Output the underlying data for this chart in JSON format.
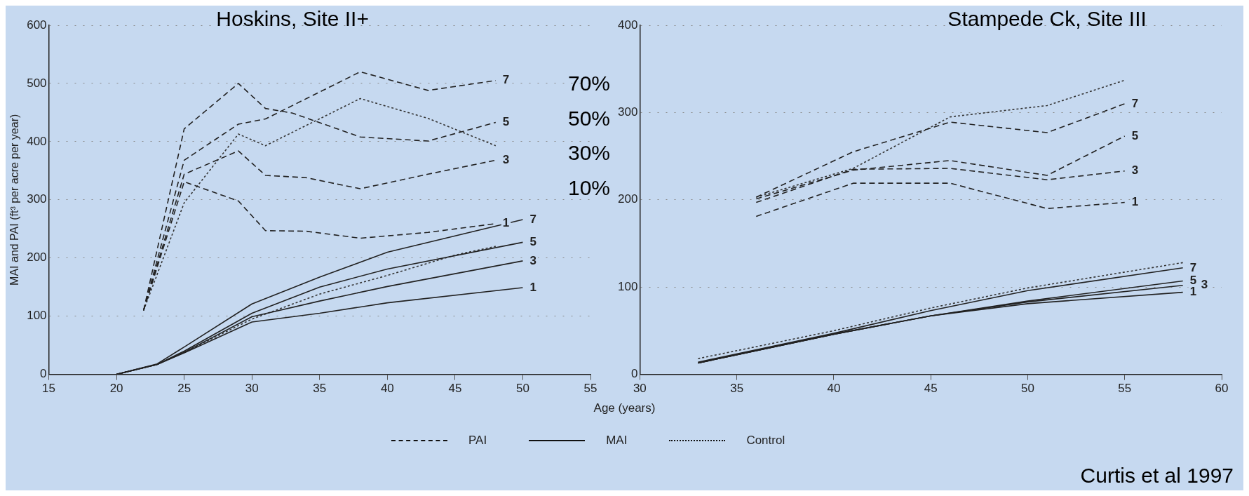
{
  "chart_data": [
    {
      "type": "line",
      "title": "Hoskins, Site II+",
      "ylabel": "MAI and PAI (ft³ per acre per year)",
      "xlabel": "Age (years)",
      "xlim": [
        15,
        55
      ],
      "xticks": [
        15,
        20,
        25,
        30,
        35,
        40,
        45,
        50,
        55
      ],
      "ylim": [
        0,
        600
      ],
      "yticks": [
        0,
        100,
        200,
        300,
        400,
        500,
        600
      ],
      "grid": "y",
      "annotations": [
        "70%",
        "50%",
        "30%",
        "10%"
      ],
      "series": [
        {
          "name": "7",
          "color": "#222222",
          "line_style": "dashed",
          "x": [
            22,
            25,
            29,
            31,
            38,
            43,
            48
          ],
          "values": [
            110,
            368,
            430,
            439,
            520,
            488,
            505
          ]
        },
        {
          "name": "5",
          "color": "#222222",
          "line_style": "dashed",
          "x": [
            22,
            25,
            29,
            31,
            33,
            38,
            43,
            48
          ],
          "values": [
            110,
            422,
            500,
            457,
            449,
            408,
            401,
            433
          ]
        },
        {
          "name": "3",
          "color": "#222222",
          "line_style": "dashed",
          "x": [
            22,
            25,
            29,
            31,
            34,
            38,
            43,
            48
          ],
          "values": [
            110,
            344,
            384,
            342,
            338,
            319,
            344,
            368
          ]
        },
        {
          "name": "1",
          "color": "#222222",
          "line_style": "dashed",
          "x": [
            22,
            25,
            29,
            31,
            34,
            38,
            43,
            48
          ],
          "values": [
            110,
            331,
            298,
            247,
            246,
            234,
            244,
            259
          ]
        },
        {
          "color": "#333333",
          "line_style": "dotted",
          "x": [
            22,
            25,
            29,
            31,
            38,
            43,
            48
          ],
          "values": [
            110,
            295,
            413,
            393,
            474,
            440,
            393
          ]
        },
        {
          "name": "7",
          "color": "#222222",
          "line_style": "solid",
          "x": [
            20,
            23,
            25,
            30,
            35,
            40,
            50
          ],
          "values": [
            0,
            18,
            47,
            121,
            167,
            210,
            266
          ]
        },
        {
          "name": "5",
          "color": "#222222",
          "line_style": "solid",
          "x": [
            20,
            23,
            25,
            30,
            35,
            40,
            50
          ],
          "values": [
            0,
            17,
            40,
            105,
            150,
            181,
            227
          ]
        },
        {
          "name": "3",
          "color": "#222222",
          "line_style": "solid",
          "x": [
            20,
            23,
            25,
            30,
            35,
            40,
            50
          ],
          "values": [
            0,
            17,
            38,
            99,
            126,
            151,
            195
          ]
        },
        {
          "name": "1",
          "color": "#222222",
          "line_style": "solid",
          "x": [
            20,
            23,
            25,
            30,
            35,
            40,
            50
          ],
          "values": [
            0,
            17,
            37,
            90,
            105,
            123,
            149
          ]
        },
        {
          "color": "#333333",
          "line_style": "dotted",
          "x": [
            20,
            23,
            25,
            30,
            35,
            40,
            45,
            48
          ],
          "values": [
            0,
            17,
            38,
            95,
            138,
            170,
            205,
            220
          ]
        }
      ]
    },
    {
      "type": "line",
      "title": "Stampede Ck, Site III",
      "xlim": [
        30,
        60
      ],
      "xticks": [
        30,
        35,
        40,
        45,
        50,
        55,
        60
      ],
      "ylim": [
        0,
        400
      ],
      "yticks": [
        0,
        100,
        200,
        300,
        400
      ],
      "grid": "y",
      "annotations": [
        "PAI",
        "MAI",
        "Control",
        "Curtis et al 1997"
      ],
      "series": [
        {
          "name": "7",
          "color": "#222222",
          "line_style": "dashed",
          "x": [
            36,
            41,
            46,
            51,
            55
          ],
          "values": [
            203,
            255,
            289,
            277,
            310
          ]
        },
        {
          "name": "5",
          "color": "#222222",
          "line_style": "dashed",
          "x": [
            36,
            41,
            46,
            51,
            55
          ],
          "values": [
            201,
            234,
            245,
            228,
            273
          ]
        },
        {
          "name": "3",
          "color": "#222222",
          "line_style": "dashed",
          "x": [
            36,
            41,
            46,
            51,
            55
          ],
          "values": [
            197,
            235,
            236,
            223,
            233
          ]
        },
        {
          "name": "1",
          "color": "#222222",
          "line_style": "dashed",
          "x": [
            36,
            41,
            46,
            51,
            55
          ],
          "values": [
            181,
            219,
            219,
            190,
            197
          ]
        },
        {
          "color": "#333333",
          "line_style": "dotted",
          "x": [
            36,
            41,
            46,
            51,
            55
          ],
          "values": [
            203,
            236,
            295,
            308,
            337
          ]
        },
        {
          "name": "7",
          "color": "#222222",
          "line_style": "solid",
          "x": [
            33,
            40,
            45,
            50,
            58
          ],
          "values": [
            14,
            47,
            73,
            96,
            122
          ]
        },
        {
          "name": "5",
          "color": "#222222",
          "line_style": "solid",
          "x": [
            33,
            40,
            45,
            50,
            58
          ],
          "values": [
            13,
            46,
            67,
            84,
            107
          ]
        },
        {
          "name": "3",
          "color": "#222222",
          "line_style": "solid",
          "x": [
            33,
            40,
            45,
            50,
            58
          ],
          "values": [
            13,
            46,
            67,
            83,
            102
          ]
        },
        {
          "name": "1",
          "color": "#222222",
          "line_style": "solid",
          "x": [
            33,
            40,
            45,
            50,
            58
          ],
          "values": [
            13,
            46,
            67,
            81,
            94
          ]
        },
        {
          "color": "#333333",
          "line_style": "dotted",
          "x": [
            33,
            40,
            45,
            50,
            58
          ],
          "values": [
            18,
            50,
            76,
            99,
            128
          ]
        }
      ]
    }
  ]
}
